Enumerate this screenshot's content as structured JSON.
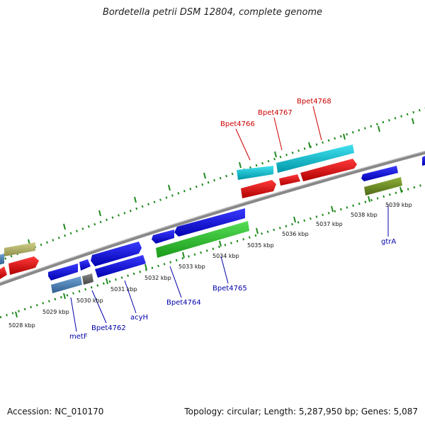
{
  "title": "Bordetella petrii DSM 12804, complete genome",
  "accession_text": "Accession: NC_010170",
  "summary_text": "Topology: circular; Length: 5,287,950 bp; Genes: 5,087",
  "colors": {
    "backbone": "#8a8a8a",
    "tick": "#1f8a1f",
    "gene_label_forward": "#cc0000",
    "gene_label_reverse": "#0000aa",
    "kbp_label": "#111111"
  },
  "kbp_ticks": [
    "5028 kbp",
    "5029 kbp",
    "5030 kbp",
    "5031 kbp",
    "5032 kbp",
    "5033 kbp",
    "5034 kbp",
    "5035 kbp",
    "5036 kbp",
    "5037 kbp",
    "5038 kbp",
    "5039 kbp"
  ],
  "gene_labels": {
    "forward": [
      "Bpet4766",
      "Bpet4767",
      "Bpet4768"
    ],
    "reverse": [
      "metF",
      "Bpet4762",
      "acyH",
      "Bpet4764",
      "Bpet4765",
      "gtrA"
    ]
  },
  "feature_colors": [
    "#0000dd",
    "#dd0000",
    "#00bcd4",
    "#22bb22",
    "#b5b56a",
    "#6b8e23",
    "#4682b4",
    "#666666"
  ]
}
